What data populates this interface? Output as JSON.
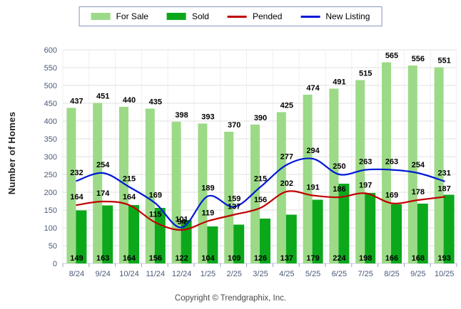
{
  "page": {
    "footer": "Copyright © Trendgraphix, Inc."
  },
  "chart_data": {
    "type": "bar+line",
    "title": "",
    "xlabel": "",
    "ylabel": "Number of Homes",
    "ylim": [
      0,
      600
    ],
    "ytick_step": 50,
    "grid": true,
    "legend_position": "top",
    "categories": [
      "8/24",
      "9/24",
      "10/24",
      "11/24",
      "12/24",
      "1/25",
      "2/25",
      "3/25",
      "4/25",
      "5/25",
      "6/25",
      "7/25",
      "8/25",
      "9/25",
      "10/25"
    ],
    "series": [
      {
        "name": "For Sale",
        "type": "bar",
        "color": "#9cda87",
        "values": [
          437,
          451,
          440,
          435,
          398,
          393,
          370,
          390,
          425,
          474,
          491,
          515,
          565,
          556,
          551
        ]
      },
      {
        "name": "Sold",
        "type": "bar",
        "color": "#0ca81c",
        "values": [
          149,
          163,
          164,
          156,
          122,
          104,
          109,
          126,
          137,
          179,
          224,
          198,
          166,
          168,
          193
        ]
      },
      {
        "name": "Pended",
        "type": "line",
        "color": "#c00000",
        "values": [
          164,
          174,
          164,
          115,
          94,
          119,
          137,
          156,
          202,
          191,
          186,
          197,
          169,
          178,
          187
        ]
      },
      {
        "name": "New Listing",
        "type": "line",
        "color": "#0018d6",
        "values": [
          232,
          254,
          215,
          169,
          101,
          189,
          159,
          215,
          277,
          294,
          250,
          263,
          263,
          254,
          231
        ]
      }
    ]
  },
  "colors": {
    "grid_horizontal": "#e2e2e2",
    "grid_vertical": "#efefef",
    "axis_line": "#c6ccda",
    "tick": "#9aa6c0",
    "axis_text": "#4a5a78",
    "data_label_text": "#000000",
    "legend_border": "#8696b8"
  }
}
